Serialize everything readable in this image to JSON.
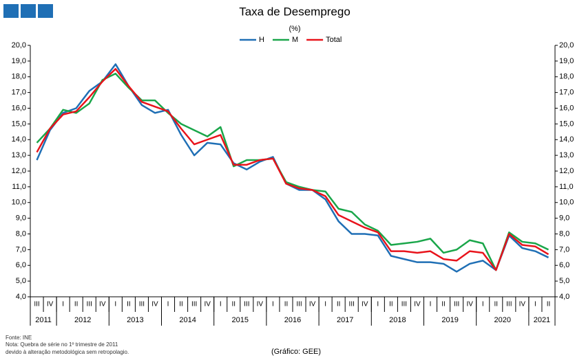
{
  "chart_data": {
    "type": "line",
    "title": "Taxa de Desemprego",
    "subtitle": "(%)",
    "categories": [
      "III",
      "IV",
      "I",
      "II",
      "III",
      "IV",
      "I",
      "II",
      "III",
      "IV",
      "I",
      "II",
      "III",
      "IV",
      "I",
      "II",
      "III",
      "IV",
      "I",
      "II",
      "III",
      "IV",
      "I",
      "II",
      "III",
      "IV",
      "I",
      "II",
      "III",
      "IV",
      "I",
      "II",
      "III",
      "IV",
      "I",
      "II",
      "III",
      "IV",
      "I",
      "II"
    ],
    "years": [
      "2011",
      "2012",
      "2013",
      "2014",
      "2015",
      "2016",
      "2017",
      "2018",
      "2019",
      "2020",
      "2021"
    ],
    "series": [
      {
        "name": "H",
        "color": "#1f6fb5",
        "values": [
          12.7,
          14.6,
          15.7,
          16.0,
          17.1,
          17.7,
          18.8,
          17.4,
          16.2,
          15.7,
          15.9,
          14.3,
          13.0,
          13.8,
          13.7,
          12.5,
          12.1,
          12.6,
          12.9,
          11.2,
          10.8,
          10.8,
          10.2,
          8.8,
          8.0,
          8.0,
          7.9,
          6.6,
          6.4,
          6.2,
          6.2,
          6.1,
          5.6,
          6.1,
          6.3,
          5.7,
          7.9,
          7.1,
          6.9,
          6.5
        ]
      },
      {
        "name": "M",
        "color": "#1aa64a",
        "values": [
          13.8,
          14.7,
          15.9,
          15.7,
          16.3,
          17.8,
          18.2,
          17.3,
          16.5,
          16.5,
          15.7,
          15.0,
          14.6,
          14.2,
          14.8,
          12.3,
          12.7,
          12.7,
          12.8,
          11.3,
          11.0,
          10.8,
          10.7,
          9.6,
          9.4,
          8.6,
          8.2,
          7.3,
          7.4,
          7.5,
          7.7,
          6.8,
          7.0,
          7.6,
          7.4,
          5.7,
          8.1,
          7.5,
          7.4,
          7.0
        ]
      },
      {
        "name": "Total",
        "color": "#e8131b",
        "values": [
          13.2,
          14.7,
          15.6,
          15.8,
          16.7,
          17.7,
          18.5,
          17.4,
          16.4,
          16.1,
          15.8,
          14.7,
          13.7,
          14.0,
          14.3,
          12.4,
          12.4,
          12.7,
          12.8,
          11.2,
          10.9,
          10.8,
          10.4,
          9.2,
          8.8,
          8.4,
          8.1,
          6.9,
          6.9,
          6.8,
          6.9,
          6.4,
          6.3,
          6.9,
          6.8,
          5.7,
          8.0,
          7.3,
          7.2,
          6.7
        ]
      }
    ],
    "ylim": [
      4,
      20
    ],
    "yticks": [
      {
        "value": 4,
        "label": "4,0"
      },
      {
        "value": 5,
        "label": "5,0"
      },
      {
        "value": 6,
        "label": "6,0"
      },
      {
        "value": 7,
        "label": "7,0"
      },
      {
        "value": 8,
        "label": "8,0"
      },
      {
        "value": 9,
        "label": "9,0"
      },
      {
        "value": 10,
        "label": "10,0"
      },
      {
        "value": 11,
        "label": "11,0"
      },
      {
        "value": 12,
        "label": "12,0"
      },
      {
        "value": 13,
        "label": "13,0"
      },
      {
        "value": 14,
        "label": "14,0"
      },
      {
        "value": 15,
        "label": "15,0"
      },
      {
        "value": 16,
        "label": "16,0"
      },
      {
        "value": 17,
        "label": "17,0"
      },
      {
        "value": 18,
        "label": "18,0"
      },
      {
        "value": 19,
        "label": "19,0"
      },
      {
        "value": 20,
        "label": "20,0"
      }
    ],
    "y2lim": [
      4,
      20
    ],
    "y2ticks": [
      {
        "value": 4,
        "label": "4,0"
      },
      {
        "value": 5,
        "label": "5,0"
      },
      {
        "value": 6,
        "label": "6,0"
      },
      {
        "value": 7,
        "label": "7,0"
      },
      {
        "value": 8,
        "label": "8,0"
      },
      {
        "value": 9,
        "label": "9,0"
      },
      {
        "value": 10,
        "label": "10,0"
      },
      {
        "value": 11,
        "label": "11,0"
      },
      {
        "value": 12,
        "label": "12,0"
      },
      {
        "value": 13,
        "label": "13,0"
      },
      {
        "value": 14,
        "label": "14,0"
      },
      {
        "value": 15,
        "label": "15,0"
      },
      {
        "value": 16,
        "label": "16,0"
      },
      {
        "value": 17,
        "label": "17,0"
      },
      {
        "value": 18,
        "label": "18,0"
      },
      {
        "value": 19,
        "label": "19,0"
      },
      {
        "value": 20,
        "label": "20,0"
      }
    ],
    "grid": false,
    "legend": "top",
    "notes": [
      "Fonte: INE",
      "Nota: Quebra de série no 1º trimestre de 2011",
      "devido à alteração metodológica sem retropolagio."
    ],
    "credit": "(Gráfico: GEE)"
  }
}
